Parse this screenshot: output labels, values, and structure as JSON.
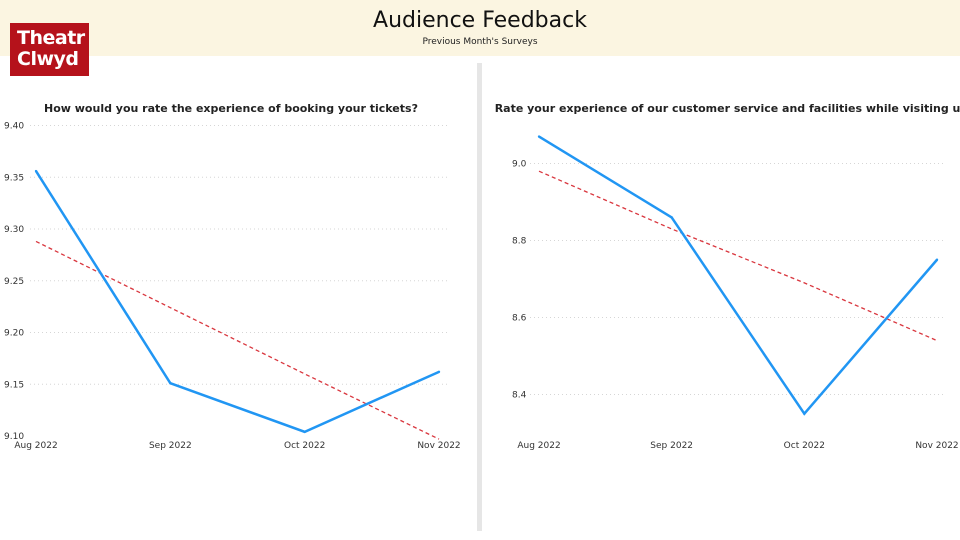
{
  "header": {
    "title": "Audience Feedback",
    "subtitle": "Previous Month's Surveys",
    "logo_line1": "Theatr",
    "logo_line2": "Clwyd"
  },
  "colors": {
    "header_bg": "#fbf5e1",
    "logo_bg": "#b5121b",
    "series": "#2196f3",
    "trend": "#d9363e",
    "grid": "#d6d6d6"
  },
  "chart_data": [
    {
      "type": "line",
      "title": "How would you rate the experience of booking your tickets?",
      "categories": [
        "Aug 2022",
        "Sep 2022",
        "Oct 2022",
        "Nov 2022"
      ],
      "series": [
        {
          "values": [
            9.356,
            9.151,
            9.104,
            9.162
          ]
        }
      ],
      "trend": [
        9.288,
        9.224,
        9.16,
        9.097
      ],
      "ylim": [
        9.1,
        9.4
      ],
      "yticks": [
        "9.10",
        "9.15",
        "9.20",
        "9.25",
        "9.30",
        "9.35",
        "9.40"
      ],
      "grid": true
    },
    {
      "type": "line",
      "title": "Rate your experience of our customer service and facilities while visiting us?",
      "categories": [
        "Aug 2022",
        "Sep 2022",
        "Oct 2022",
        "Nov 2022"
      ],
      "series": [
        {
          "values": [
            9.07,
            8.86,
            8.35,
            8.75
          ]
        }
      ],
      "trend": [
        8.98,
        8.83,
        8.69,
        8.54
      ],
      "ylim": [
        8.3,
        9.1
      ],
      "yticks": [
        "8.4",
        "8.6",
        "8.8",
        "9.0"
      ],
      "grid": true
    }
  ]
}
